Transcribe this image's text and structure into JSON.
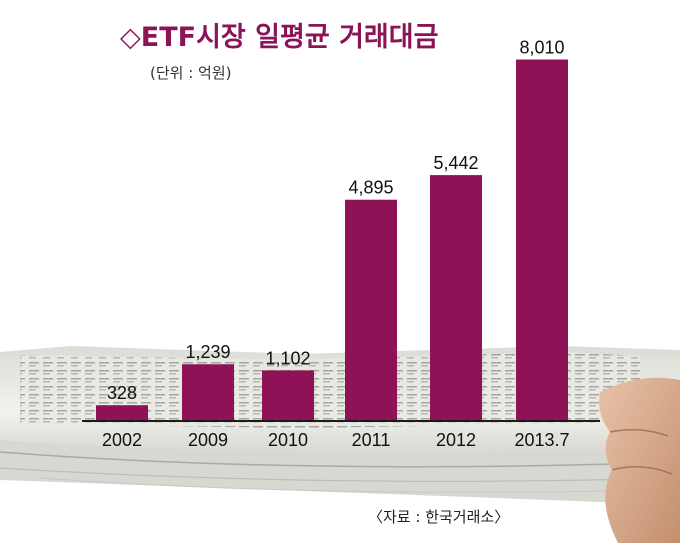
{
  "chart_data": {
    "type": "bar",
    "title": "◇ETF시장 일평균 거래대금",
    "unit_note": "(단위 : 억원)",
    "source_note": "〈자료 : 한국거래소〉",
    "categories": [
      "2002",
      "2009",
      "2010",
      "2011",
      "2012",
      "2013.7"
    ],
    "values": [
      328,
      1239,
      1102,
      4895,
      5442,
      8010
    ],
    "value_labels": [
      "328",
      "1,239",
      "1,102",
      "4,895",
      "5,442",
      "8,010"
    ],
    "ylim": [
      0,
      8400
    ],
    "grid": false,
    "legend": "none",
    "bar_color": "#8d1256",
    "title_color": "#8b1458"
  }
}
